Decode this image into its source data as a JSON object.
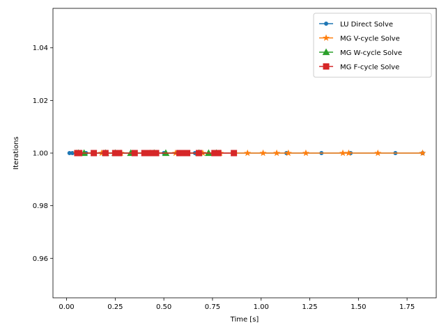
{
  "chart_data": {
    "type": "line",
    "xlabel": "Time [s]",
    "ylabel": "Iterations",
    "xlim": [
      -0.07,
      1.9
    ],
    "ylim": [
      0.945,
      1.055
    ],
    "xticks": [
      0.0,
      0.25,
      0.5,
      0.75,
      1.0,
      1.25,
      1.5,
      1.75
    ],
    "xtick_labels": [
      "0.00",
      "0.25",
      "0.50",
      "0.75",
      "1.00",
      "1.25",
      "1.50",
      "1.75"
    ],
    "yticks": [
      0.96,
      0.98,
      1.0,
      1.02,
      1.04
    ],
    "ytick_labels": [
      "0.96",
      "0.98",
      "1.00",
      "1.02",
      "1.04"
    ],
    "grid": false,
    "legend_position": "top-right",
    "series": [
      {
        "name": "LU Direct Solve",
        "color": "#1f77b4",
        "marker": "circle",
        "x": [
          0.015,
          0.03,
          0.05,
          0.1,
          0.2,
          0.35,
          0.5,
          0.66,
          0.86,
          1.13,
          1.31,
          1.46,
          1.69,
          1.83
        ],
        "y": [
          1,
          1,
          1,
          1,
          1,
          1,
          1,
          1,
          1,
          1,
          1,
          1,
          1,
          1
        ]
      },
      {
        "name": "MG V-cycle Solve",
        "color": "#ff7f0e",
        "marker": "star",
        "x": [
          0.05,
          0.18,
          0.28,
          0.43,
          0.56,
          0.7,
          0.79,
          0.93,
          1.01,
          1.08,
          1.14,
          1.23,
          1.42,
          1.45,
          1.6,
          1.83
        ],
        "y": [
          1,
          1,
          1,
          1,
          1,
          1,
          1,
          1,
          1,
          1,
          1,
          1,
          1,
          1,
          1,
          1
        ]
      },
      {
        "name": "MG W-cycle Solve",
        "color": "#2ca02c",
        "marker": "triangle",
        "x": [
          0.06,
          0.09,
          0.2,
          0.25,
          0.33,
          0.45,
          0.51,
          0.68,
          0.73,
          0.77
        ],
        "y": [
          1,
          1,
          1,
          1,
          1,
          1,
          1,
          1,
          1,
          1
        ]
      },
      {
        "name": "MG F-cycle Solve",
        "color": "#d62728",
        "marker": "square",
        "x": [
          0.055,
          0.065,
          0.14,
          0.2,
          0.25,
          0.27,
          0.35,
          0.4,
          0.43,
          0.46,
          0.58,
          0.6,
          0.62,
          0.68,
          0.76,
          0.78,
          0.86
        ],
        "y": [
          1,
          1,
          1,
          1,
          1,
          1,
          1,
          1,
          1,
          1,
          1,
          1,
          1,
          1,
          1,
          1,
          1
        ]
      }
    ]
  }
}
